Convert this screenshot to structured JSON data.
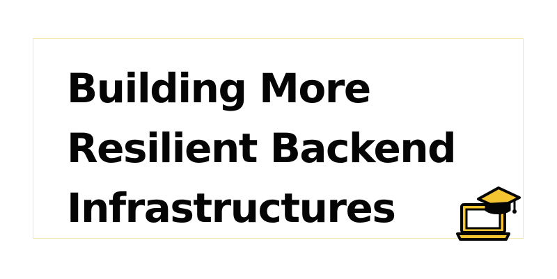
{
  "banner": {
    "title_lines": [
      "Building More",
      "Resilient Backend",
      "Infrastructures"
    ],
    "logo_icon": "laptop-with-graduation-cap-icon",
    "colors": {
      "text": "#050505",
      "accent": "#f5c431",
      "border": "#f3e6b0",
      "background": "#ffffff"
    }
  }
}
